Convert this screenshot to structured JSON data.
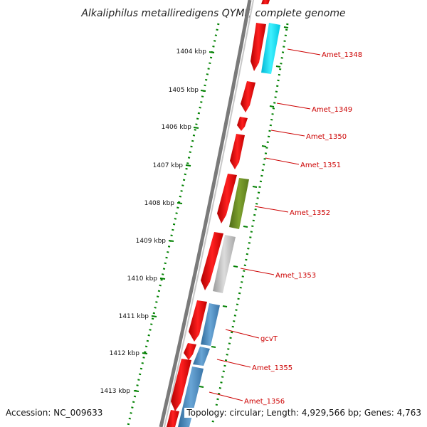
{
  "title": "Alkaliphilus metalliredigens QYMF, complete genome",
  "footer": {
    "accession": "Accession: NC_009633",
    "topology": "Topology: circular; Length: 4,929,566 bp; Genes: 4,763"
  },
  "kbp_ticks": [
    "1404 kbp",
    "1405 kbp",
    "1406 kbp",
    "1407 kbp",
    "1408 kbp",
    "1409 kbp",
    "1410 kbp",
    "1411 kbp",
    "1412 kbp",
    "1413 kbp"
  ],
  "gene_labels": [
    "Amet_1348",
    "Amet_1349",
    "Amet_1350",
    "Amet_1351",
    "Amet_1352",
    "Amet_1353",
    "gcvT",
    "Amet_1355",
    "Amet_1356"
  ],
  "colors": {
    "forward_cds": "#ff0000",
    "cyan_feature": "#00e5ff",
    "olive_feature": "#6b8e23",
    "grey_feature": "#bbbbbb",
    "blue_feature": "#4682b4",
    "backbone": "#808080",
    "dotted_ring": "#008000",
    "label": "#cc0000"
  }
}
